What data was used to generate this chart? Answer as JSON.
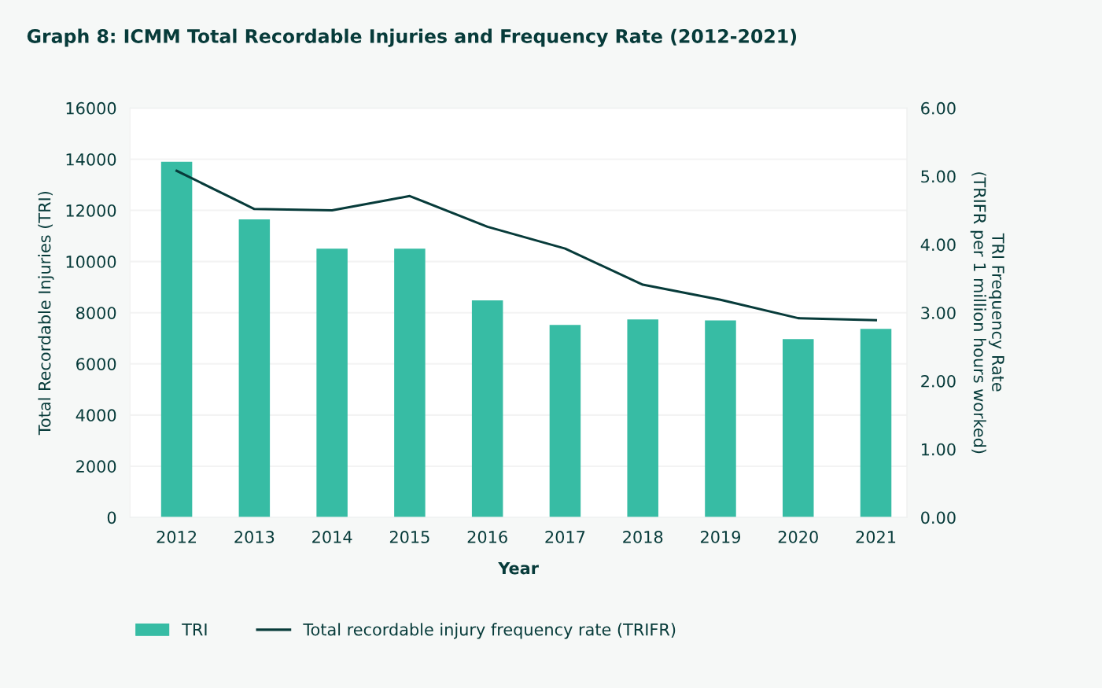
{
  "chart_data": {
    "type": "bar",
    "title": "Graph 8: ICMM Total Recordable Injuries and Frequency Rate (2012-2021)",
    "xlabel": "Year",
    "ylabel": "Total Recordable Injuries (TRI)",
    "y2label": "TRI Frequency Rate\n(TRIFR per 1 million hours worked)",
    "categories": [
      "2012",
      "2013",
      "2014",
      "2015",
      "2016",
      "2017",
      "2018",
      "2019",
      "2020",
      "2021"
    ],
    "series": [
      {
        "name": "TRI",
        "color": "#37bca4",
        "values": [
          13900,
          11650,
          10500,
          10500,
          8480,
          7520,
          7740,
          7700,
          6970,
          7370
        ]
      },
      {
        "name": "Total recordable injury frequency rate (TRIFR)",
        "type": "line",
        "axis": "y2",
        "color": "#073b3a",
        "values": [
          5.08,
          4.52,
          4.5,
          4.71,
          4.26,
          3.94,
          3.41,
          3.19,
          2.92,
          2.89
        ]
      }
    ],
    "ylim": [
      0,
      16000
    ],
    "yticks": [
      0,
      2000,
      4000,
      6000,
      8000,
      10000,
      12000,
      14000,
      16000
    ],
    "y2lim": [
      0,
      6
    ],
    "y2ticks": [
      {
        "value": 0,
        "label": "0.00"
      },
      {
        "value": 1,
        "label": "1.00"
      },
      {
        "value": 2,
        "label": "2.00"
      },
      {
        "value": 3,
        "label": "3.00"
      },
      {
        "value": 4,
        "label": "4.00"
      },
      {
        "value": 5,
        "label": "5.00"
      },
      {
        "value": 6,
        "label": "6.00"
      }
    ],
    "grid": "y",
    "legend": "bottom left",
    "marker": "none",
    "line_style": "solid"
  }
}
